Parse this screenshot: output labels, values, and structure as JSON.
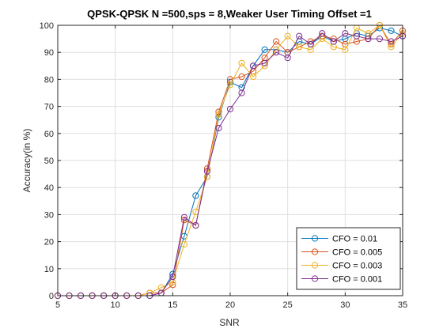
{
  "chart_data": {
    "type": "line",
    "title": "QPSK-QPSK N =500,sps = 8,Weaker User Timing Offset =1",
    "xlabel": "SNR",
    "ylabel": "Accuracy(in %)",
    "xlim": [
      5,
      35
    ],
    "ylim": [
      0,
      100
    ],
    "xticks": [
      5,
      10,
      15,
      20,
      25,
      30,
      35
    ],
    "yticks": [
      0,
      10,
      20,
      30,
      40,
      50,
      60,
      70,
      80,
      90,
      100
    ],
    "grid": true,
    "legend_position": "bottom-right",
    "marker": "circle",
    "x": [
      5,
      6,
      7,
      8,
      9,
      10,
      11,
      12,
      13,
      14,
      15,
      16,
      17,
      18,
      19,
      20,
      21,
      22,
      23,
      24,
      25,
      26,
      27,
      28,
      29,
      30,
      31,
      32,
      33,
      34,
      35
    ],
    "series": [
      {
        "name": "CFO = 0.01",
        "color": "#0072BD",
        "values": [
          0,
          0,
          0,
          0,
          0,
          0,
          0,
          0,
          0,
          1,
          8,
          22,
          37,
          44,
          66,
          79,
          77,
          85,
          91,
          91,
          90,
          94,
          93,
          96,
          94,
          95,
          97,
          96,
          99,
          98,
          96
        ]
      },
      {
        "name": "CFO = 0.005",
        "color": "#D95319",
        "values": [
          0,
          0,
          0,
          0,
          0,
          0,
          0,
          0,
          1,
          1,
          4,
          28,
          26,
          47,
          68,
          80,
          81,
          83,
          88,
          94,
          90,
          92,
          94,
          96,
          95,
          93,
          94,
          95,
          100,
          93,
          98
        ]
      },
      {
        "name": "CFO = 0.003",
        "color": "#EDB120",
        "values": [
          0,
          0,
          0,
          0,
          0,
          0,
          0,
          0,
          1,
          3,
          5,
          19,
          31,
          44,
          67,
          78,
          86,
          81,
          85,
          91,
          96,
          92,
          91,
          95,
          92,
          91,
          99,
          97,
          100,
          92,
          97
        ]
      },
      {
        "name": "CFO = 0.001",
        "color": "#7E2F8E",
        "values": [
          0,
          0,
          0,
          0,
          0,
          0,
          0,
          0,
          0,
          1,
          7,
          29,
          26,
          46,
          62,
          69,
          75,
          85,
          86,
          90,
          88,
          96,
          93,
          97,
          94,
          97,
          96,
          95,
          95,
          94,
          96
        ]
      }
    ]
  }
}
